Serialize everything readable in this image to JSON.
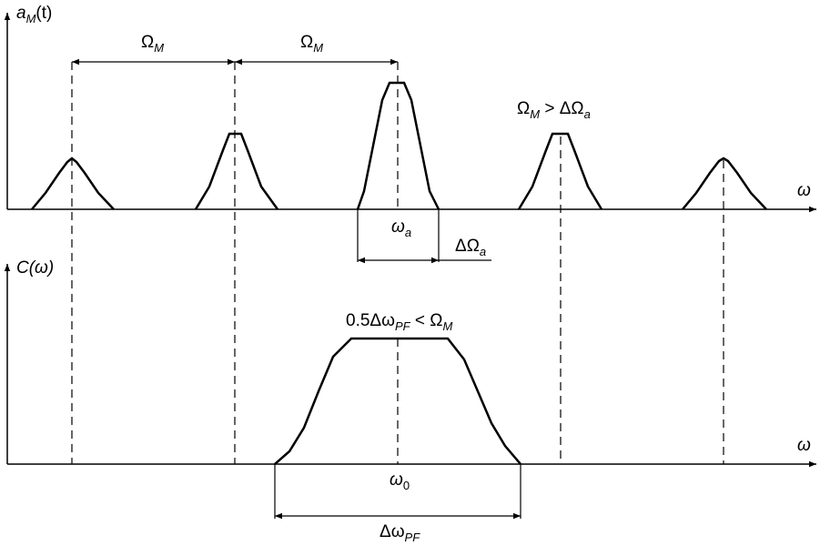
{
  "top_plot": {
    "y_axis_label": {
      "main": "a",
      "sub": "M",
      "tail": "(t)"
    },
    "x_axis_label": "ω",
    "spacing_label_left": {
      "main": "Ω",
      "sub": "M"
    },
    "spacing_label_right": {
      "main": "Ω",
      "sub": "M"
    },
    "center_label": {
      "main": "ω",
      "sub": "a"
    },
    "bandwidth_label": {
      "main": "ΔΩ",
      "sub": "a"
    },
    "condition_label": {
      "pre": "Ω",
      "pre_sub": "M",
      "mid": " > ΔΩ",
      "mid_sub": "a"
    }
  },
  "bottom_plot": {
    "y_axis_label": {
      "main": "C(ω)"
    },
    "x_axis_label": "ω",
    "center_label": {
      "main": "ω",
      "sub": "0"
    },
    "bandwidth_label": {
      "main": "Δω",
      "sub": "PF"
    },
    "condition_label": {
      "pre": "0.5Δω",
      "pre_sub": "PF",
      "mid": " < Ω",
      "mid_sub": "M"
    }
  }
}
